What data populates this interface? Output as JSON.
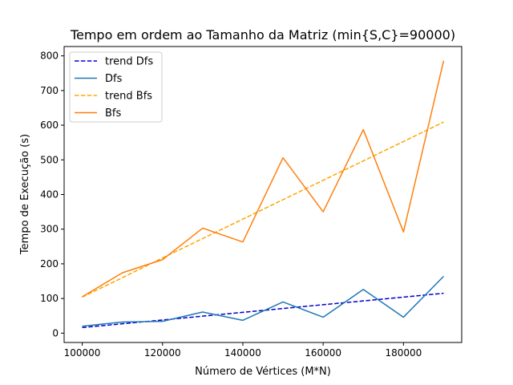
{
  "chart_data": {
    "type": "line",
    "title": "Tempo em ordem ao Tamanho da Matriz (min{S,C}=90000)",
    "xlabel": "Número de Vértices (M*N)",
    "ylabel": "Tempo de Execução (s)",
    "xlim": [
      95500,
      194500
    ],
    "ylim": [
      -27,
      827
    ],
    "x_ticks": [
      100000,
      120000,
      140000,
      160000,
      180000
    ],
    "y_ticks": [
      0,
      100,
      200,
      300,
      400,
      500,
      600,
      700,
      800
    ],
    "x": [
      100000,
      110000,
      120000,
      130000,
      140000,
      150000,
      160000,
      170000,
      180000,
      190000
    ],
    "grid": false,
    "legend_position": "top-left",
    "series": [
      {
        "name": "trend Dfs",
        "style": "dashed",
        "color": "#0000cd",
        "values": [
          16,
          27,
          38,
          49,
          60,
          71,
          82,
          93,
          104,
          115
        ]
      },
      {
        "name": "Dfs",
        "style": "solid",
        "color": "#1f77b4",
        "values": [
          20,
          32,
          34,
          61,
          37,
          90,
          46,
          126,
          46,
          164
        ]
      },
      {
        "name": "trend Bfs",
        "style": "dashed",
        "color": "#ffa500",
        "values": [
          104,
          160,
          217,
          273,
          329,
          385,
          441,
          497,
          553,
          609
        ]
      },
      {
        "name": "Bfs",
        "style": "solid",
        "color": "#ff7f0e",
        "values": [
          105,
          174,
          212,
          303,
          263,
          506,
          350,
          587,
          292,
          786
        ]
      }
    ]
  }
}
